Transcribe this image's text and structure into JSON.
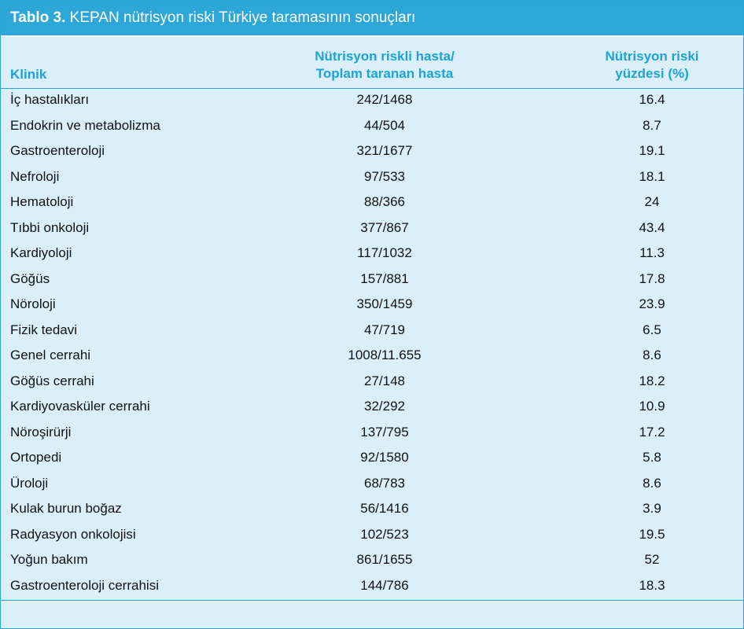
{
  "title": {
    "label": "Tablo 3.",
    "text": "KEPAN nütrisyon riski Türkiye taramasının sonuçları"
  },
  "headers": {
    "klinik": "Klinik",
    "col2_line1": "Nütrisyon riskli hasta/",
    "col2_line2": "Toplam taranan hasta",
    "col3_line1": "Nütrisyon riski",
    "col3_line2": "yüzdesi (%)"
  },
  "rows": [
    {
      "klinik": "İç hastalıkları",
      "ratio": "242/1468",
      "percent": "16.4"
    },
    {
      "klinik": "Endokrin ve metabolizma",
      "ratio": "44/504",
      "percent": "8.7"
    },
    {
      "klinik": "Gastroenteroloji",
      "ratio": "321/1677",
      "percent": "19.1"
    },
    {
      "klinik": "Nefroloji",
      "ratio": "97/533",
      "percent": "18.1"
    },
    {
      "klinik": "Hematoloji",
      "ratio": "88/366",
      "percent": "24"
    },
    {
      "klinik": "Tıbbi onkoloji",
      "ratio": "377/867",
      "percent": "43.4"
    },
    {
      "klinik": "Kardiyoloji",
      "ratio": "117/1032",
      "percent": "11.3"
    },
    {
      "klinik": "Göğüs",
      "ratio": "157/881",
      "percent": "17.8"
    },
    {
      "klinik": "Nöroloji",
      "ratio": "350/1459",
      "percent": "23.9"
    },
    {
      "klinik": "Fizik tedavi",
      "ratio": "47/719",
      "percent": "6.5"
    },
    {
      "klinik": "Genel cerrahi",
      "ratio": "1008/11.655",
      "percent": "8.6"
    },
    {
      "klinik": "Göğüs cerrahi",
      "ratio": "27/148",
      "percent": "18.2"
    },
    {
      "klinik": "Kardiyovasküler cerrahi",
      "ratio": "32/292",
      "percent": "10.9"
    },
    {
      "klinik": "Nöroşirürji",
      "ratio": "137/795",
      "percent": "17.2"
    },
    {
      "klinik": "Ortopedi",
      "ratio": "92/1580",
      "percent": "5.8"
    },
    {
      "klinik": "Üroloji",
      "ratio": "68/783",
      "percent": "8.6"
    },
    {
      "klinik": "Kulak burun boğaz",
      "ratio": "56/1416",
      "percent": "3.9"
    },
    {
      "klinik": "Radyasyon onkolojisi",
      "ratio": "102/523",
      "percent": "19.5"
    },
    {
      "klinik": "Yoğun bakım",
      "ratio": "861/1655",
      "percent": "52"
    },
    {
      "klinik": "Gastroenteroloji cerrahisi",
      "ratio": "144/786",
      "percent": "18.3"
    }
  ],
  "colors": {
    "accent": "#2ca7d8",
    "header_text": "#1ba3d8",
    "background": "#dbeffa"
  }
}
